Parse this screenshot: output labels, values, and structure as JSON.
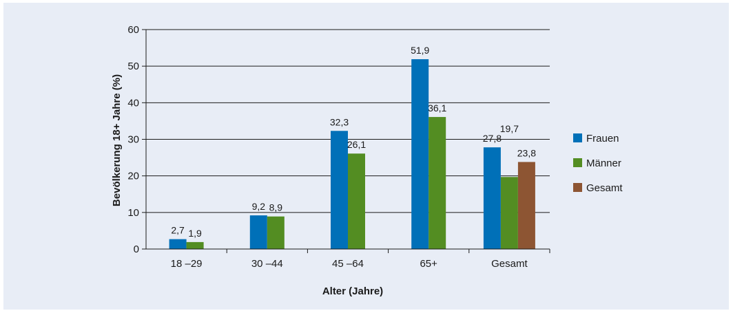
{
  "chart_data": {
    "type": "bar",
    "categories": [
      "18 –29",
      "30 –44",
      "45 –64",
      "65+",
      "Gesamt"
    ],
    "series": [
      {
        "name": "Frauen",
        "color": "#0070b8",
        "values": [
          2.7,
          9.2,
          32.3,
          51.9,
          27.8
        ]
      },
      {
        "name": "Männer",
        "color": "#538d22",
        "values": [
          1.9,
          8.9,
          26.1,
          36.1,
          19.7
        ]
      },
      {
        "name": "Gesamt",
        "color": "#8d5533",
        "values": [
          null,
          null,
          null,
          null,
          23.8
        ]
      }
    ],
    "data_labels": {
      "Frauen": [
        "2,7",
        "9,2",
        "32,3",
        "51,9",
        "27,8"
      ],
      "Männer": [
        "1,9",
        "8,9",
        "26,1",
        "36,1",
        "19,7"
      ],
      "Gesamt": [
        null,
        null,
        null,
        null,
        "23,8"
      ]
    },
    "y_ticks": [
      "0",
      "10",
      "20",
      "30",
      "40",
      "50",
      "60"
    ],
    "xlabel": "Alter (Jahre)",
    "ylabel": "Bevölkerung 18+ Jahre (%)",
    "ylim": [
      0,
      60
    ],
    "grid": true,
    "legend_position": "right"
  }
}
